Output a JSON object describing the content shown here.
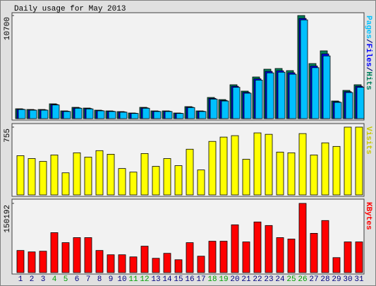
{
  "chart_data": {
    "type": "bar",
    "title": "Daily usage for May 2013",
    "categories": [
      "1",
      "2",
      "3",
      "4",
      "5",
      "6",
      "7",
      "8",
      "9",
      "10",
      "11",
      "12",
      "13",
      "14",
      "15",
      "16",
      "17",
      "18",
      "19",
      "20",
      "21",
      "22",
      "23",
      "24",
      "25",
      "26",
      "27",
      "28",
      "29",
      "30",
      "31"
    ],
    "category_colors": [
      "#000080",
      "#000080",
      "#000080",
      "#00a000",
      "#00a000",
      "#000080",
      "#000080",
      "#000080",
      "#000080",
      "#000080",
      "#00a000",
      "#00a000",
      "#000080",
      "#000080",
      "#000080",
      "#000080",
      "#000080",
      "#00a000",
      "#00a000",
      "#000080",
      "#000080",
      "#000080",
      "#000080",
      "#000080",
      "#00a000",
      "#00a000",
      "#000080",
      "#000080",
      "#000080",
      "#000080",
      "#000080"
    ],
    "legend_separator": "/",
    "panels": [
      {
        "ylim": [
          0,
          10700
        ],
        "yticks": [
          10700
        ],
        "legend_order": [
          2,
          1,
          0
        ],
        "series": [
          {
            "name": "Hits",
            "color": "#00805c",
            "values": [
              1026,
              953,
              953,
              1539,
              806,
              1173,
              1099,
              879,
              806,
              733,
              586,
              1173,
              806,
              806,
              586,
              1246,
              806,
              2199,
              1979,
              3518,
              2858,
              4324,
              5130,
              5203,
              4984,
              10700,
              5716,
              7036,
              1832,
              2932,
              3518
            ]
          },
          {
            "name": "Files",
            "color": "#0000ff",
            "values": [
              980,
              910,
              910,
              1470,
              770,
              1120,
              1050,
              840,
              770,
              700,
              560,
              1120,
              770,
              770,
              560,
              1190,
              770,
              2100,
              1890,
              3360,
              2730,
              4130,
              4900,
              4970,
              4760,
              10400,
              5460,
              6720,
              1750,
              2800,
              3360
            ]
          },
          {
            "name": "Pages",
            "color": "#00c0ff",
            "values": [
              950,
              880,
              880,
              1420,
              740,
              1080,
              1010,
              810,
              740,
              670,
              540,
              1080,
              740,
              740,
              540,
              1150,
              740,
              2030,
              1830,
              3250,
              2640,
              4000,
              4750,
              4820,
              4610,
              10250,
              5290,
              6510,
              1690,
              2710,
              3250
            ]
          }
        ]
      },
      {
        "ylim": [
          0,
          755
        ],
        "yticks": [
          755
        ],
        "legend_order": [
          0
        ],
        "series": [
          {
            "name": "Visits",
            "color": "#ffff00",
            "values": [
              437,
              405,
              373,
              445,
              246,
              469,
              421,
              493,
              453,
              294,
              254,
              461,
              318,
              405,
              326,
              509,
              278,
              596,
              644,
              660,
              397,
              691,
              675,
              477,
              469,
              683,
              445,
              580,
              540,
              755,
              755
            ]
          }
        ]
      },
      {
        "ylim": [
          0,
          150192
        ],
        "yticks": [
          150192
        ],
        "legend_order": [
          0
        ],
        "series": [
          {
            "name": "KBytes",
            "color": "#ff0000",
            "values": [
              48000,
              44900,
              46400,
              86700,
              65000,
              75900,
              75900,
              48000,
              38700,
              38700,
              34100,
              57300,
              31000,
              41800,
              27900,
              65000,
              35600,
              68100,
              68100,
              103700,
              66600,
              109900,
              102200,
              75900,
              72800,
              150192,
              85200,
              113000,
              32500,
              66600,
              66600
            ]
          }
        ]
      }
    ]
  }
}
